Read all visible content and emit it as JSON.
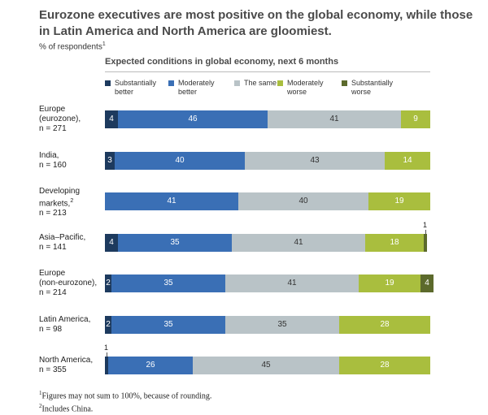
{
  "title": "Eurozone executives are most positive on the global economy, while those in Latin America and North America are gloomiest.",
  "unit_text": "% of respondents",
  "unit_sup": "1",
  "footnotes": [
    {
      "mark": "1",
      "text": "Figures may not sum to 100%, because of rounding."
    },
    {
      "mark": "2",
      "text": "Includes China."
    }
  ],
  "chart_data": {
    "type": "bar",
    "orientation": "horizontal",
    "stacked": true,
    "title": "Expected conditions in global economy, next 6 months",
    "xlim": [
      0,
      100
    ],
    "legend_position": "top",
    "categories": [
      {
        "label": "Europe\n(eurozone),\nn = 271",
        "sup": ""
      },
      {
        "label": "India,\nn = 160",
        "sup": ""
      },
      {
        "label": "Developing\nmarkets,\nn = 213",
        "sup": "2"
      },
      {
        "label": "Asia–Pacific,\nn = 141",
        "sup": ""
      },
      {
        "label": "Europe\n(non-eurozone),\nn = 214",
        "sup": ""
      },
      {
        "label": "Latin America,\nn = 98",
        "sup": ""
      },
      {
        "label": "North America,\nn = 355",
        "sup": ""
      }
    ],
    "series": [
      {
        "name": "Substantially\nbetter",
        "color": "#1d3a5e",
        "label_color": "#ffffff",
        "values": [
          4,
          3,
          0,
          4,
          2,
          2,
          1
        ]
      },
      {
        "name": "Moderately\nbetter",
        "color": "#3a6fb5",
        "label_color": "#ffffff",
        "values": [
          46,
          40,
          41,
          35,
          35,
          35,
          26
        ]
      },
      {
        "name": "The same",
        "color": "#b9c3c7",
        "label_color": "#333333",
        "values": [
          41,
          43,
          40,
          41,
          41,
          35,
          45
        ]
      },
      {
        "name": "Moderately\nworse",
        "color": "#a9be3e",
        "label_color": "#ffffff",
        "values": [
          9,
          14,
          19,
          18,
          19,
          28,
          28
        ]
      },
      {
        "name": "Substantially\nworse",
        "color": "#5c6a2c",
        "label_color": "#ffffff",
        "values": [
          0,
          0,
          0,
          1,
          4,
          0,
          0
        ]
      }
    ],
    "callouts": [
      {
        "category": 3,
        "series": 4,
        "text": "1"
      },
      {
        "category": 6,
        "series": 0,
        "text": "1"
      }
    ]
  }
}
